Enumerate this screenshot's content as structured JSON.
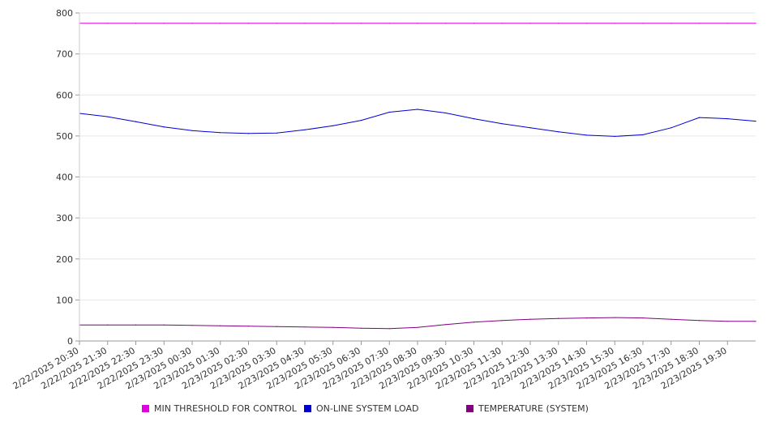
{
  "chart_data": {
    "type": "line",
    "title": "",
    "xlabel": "",
    "ylabel": "",
    "ylim": [
      0,
      800
    ],
    "yticks": [
      0,
      100,
      200,
      300,
      400,
      500,
      600,
      700,
      800
    ],
    "grid": true,
    "legend_position": "bottom",
    "x_tick_labels": [
      "2/22/2025 20:30",
      "2/22/2025 21:30",
      "2/22/2025 22:30",
      "2/22/2025 23:30",
      "2/23/2025 00:30",
      "2/23/2025 01:30",
      "2/23/2025 02:30",
      "2/23/2025 03:30",
      "2/23/2025 04:30",
      "2/23/2025 05:30",
      "2/23/2025 06:30",
      "2/23/2025 07:30",
      "2/23/2025 08:30",
      "2/23/2025 09:30",
      "2/23/2025 10:30",
      "2/23/2025 11:30",
      "2/23/2025 12:30",
      "2/23/2025 13:30",
      "2/23/2025 14:30",
      "2/23/2025 15:30",
      "2/23/2025 16:30",
      "2/23/2025 17:30",
      "2/23/2025 18:30",
      "2/23/2025 19:30"
    ],
    "x": [
      "2/22/2025 20:30",
      "2/22/2025 21:30",
      "2/22/2025 22:30",
      "2/22/2025 23:30",
      "2/23/2025 00:30",
      "2/23/2025 01:30",
      "2/23/2025 02:30",
      "2/23/2025 03:30",
      "2/23/2025 04:30",
      "2/23/2025 05:30",
      "2/23/2025 06:30",
      "2/23/2025 07:30",
      "2/23/2025 08:30",
      "2/23/2025 09:30",
      "2/23/2025 10:30",
      "2/23/2025 11:30",
      "2/23/2025 12:30",
      "2/23/2025 13:30",
      "2/23/2025 14:30",
      "2/23/2025 15:30",
      "2/23/2025 16:30",
      "2/23/2025 17:30",
      "2/23/2025 18:30",
      "2/23/2025 19:30",
      "2/23/2025 20:30"
    ],
    "series": [
      {
        "name": "MIN THRESHOLD FOR CONTROL",
        "color": "#e000e0",
        "values": [
          775,
          775,
          775,
          775,
          775,
          775,
          775,
          775,
          775,
          775,
          775,
          775,
          775,
          775,
          775,
          775,
          775,
          775,
          775,
          775,
          775,
          775,
          775,
          775,
          775
        ]
      },
      {
        "name": "ON-LINE SYSTEM LOAD",
        "color": "#0000d0",
        "values": [
          555,
          547,
          535,
          522,
          513,
          508,
          506,
          507,
          515,
          525,
          538,
          558,
          565,
          556,
          542,
          530,
          520,
          510,
          502,
          499,
          503,
          520,
          545,
          542,
          536
        ]
      },
      {
        "name": "TEMPERATURE (SYSTEM)",
        "color": "#800080",
        "values": [
          39,
          39,
          39,
          39,
          38,
          37,
          36,
          35,
          34,
          33,
          31,
          30,
          33,
          40,
          46,
          50,
          53,
          55,
          56,
          57,
          56,
          53,
          50,
          48,
          48
        ]
      }
    ]
  }
}
